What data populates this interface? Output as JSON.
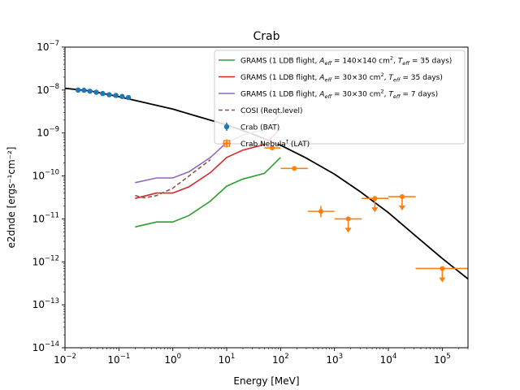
{
  "chart_data": {
    "type": "line",
    "title": "Crab",
    "xlabel": "Energy [MeV]",
    "ylabel": "e2dnde [ergs⁻¹cm⁻²]",
    "xscale": "log",
    "yscale": "log",
    "xlim": [
      0.01,
      300000
    ],
    "ylim": [
      1e-14,
      1e-07
    ],
    "x_ticks": [
      {
        "v": 0.01,
        "m": "10",
        "e": "−2"
      },
      {
        "v": 0.1,
        "m": "10",
        "e": "−1"
      },
      {
        "v": 1,
        "m": "10",
        "e": "0"
      },
      {
        "v": 10,
        "m": "10",
        "e": "1"
      },
      {
        "v": 100,
        "m": "10",
        "e": "2"
      },
      {
        "v": 1000,
        "m": "10",
        "e": "3"
      },
      {
        "v": 10000,
        "m": "10",
        "e": "4"
      },
      {
        "v": 100000,
        "m": "10",
        "e": "5"
      }
    ],
    "y_ticks": [
      {
        "v": 1e-14,
        "m": "10",
        "e": "−14"
      },
      {
        "v": 1e-13,
        "m": "10",
        "e": "−13"
      },
      {
        "v": 1e-12,
        "m": "10",
        "e": "−12"
      },
      {
        "v": 1e-11,
        "m": "10",
        "e": "−11"
      },
      {
        "v": 1e-10,
        "m": "10",
        "e": "−10"
      },
      {
        "v": 1e-09,
        "m": "10",
        "e": "−9"
      },
      {
        "v": 1e-08,
        "m": "10",
        "e": "−8"
      },
      {
        "v": 1e-07,
        "m": "10",
        "e": "−7"
      }
    ],
    "legend_position": "top-right",
    "model_curve": {
      "color": "#000000",
      "x": [
        0.01,
        0.03,
        0.1,
        0.3,
        1,
        3,
        10,
        30,
        100,
        300,
        1000,
        3000,
        10000,
        30000,
        100000,
        300000
      ],
      "y": [
        1.1e-08,
        9.5e-09,
        7e-09,
        5.1e-09,
        3.6e-09,
        2.4e-09,
        1.55e-09,
        9.5e-10,
        5.2e-10,
        2.6e-10,
        1.1e-10,
        4.3e-11,
        1.4e-11,
        4.3e-12,
        1.2e-12,
        4e-13
      ]
    },
    "series": [
      {
        "name_parts": [
          "GRAMS (1 LDB flight, ",
          "A",
          "eff",
          " = 140×140 cm",
          "2",
          ", ",
          "T",
          "eff",
          " = 35 days)"
        ],
        "style": "solid",
        "color": "#2ca02c",
        "x": [
          0.2,
          0.5,
          1,
          2,
          5,
          10,
          20,
          50,
          100
        ],
        "y": [
          6.5e-12,
          8.5e-12,
          8.5e-12,
          1.2e-11,
          2.6e-11,
          5.8e-11,
          8.5e-11,
          1.15e-10,
          2.7e-10
        ]
      },
      {
        "name_parts": [
          "GRAMS (1 LDB flight, ",
          "A",
          "eff",
          " = 30×30 cm",
          "2",
          ", ",
          "T",
          "eff",
          " = 35 days)"
        ],
        "style": "solid",
        "color": "#d62728",
        "x": [
          0.2,
          0.5,
          1,
          2,
          5,
          10,
          20,
          50,
          100
        ],
        "y": [
          3e-11,
          4e-11,
          4e-11,
          5.6e-11,
          1.2e-10,
          2.7e-10,
          4e-10,
          5.4e-10,
          1.25e-09
        ]
      },
      {
        "name_parts": [
          "GRAMS (1 LDB flight, ",
          "A",
          "eff",
          " = 30×30 cm",
          "2",
          ", ",
          "T",
          "eff",
          " = 7 days)"
        ],
        "style": "solid",
        "color": "#9467bd",
        "x": [
          0.2,
          0.5,
          1,
          2,
          5,
          10,
          20,
          50,
          100
        ],
        "y": [
          7e-11,
          9e-11,
          9e-11,
          1.25e-10,
          2.7e-10,
          6e-10,
          9e-10,
          1.2e-09,
          2.8e-09
        ]
      },
      {
        "name_parts": [
          "COSI (Reqt.level)"
        ],
        "style": "dashed",
        "color": "#8c564b",
        "x": [
          0.2,
          0.3,
          0.5,
          1,
          2,
          5
        ],
        "y": [
          3.5e-11,
          3.1e-11,
          3.5e-11,
          5.2e-11,
          1e-10,
          2.4e-10
        ]
      },
      {
        "name_parts": [
          "Crab (BAT)"
        ],
        "style": "points",
        "color": "#1f77b4",
        "x": [
          0.0175,
          0.0225,
          0.029,
          0.038,
          0.05,
          0.066,
          0.088,
          0.115,
          0.15
        ],
        "y": [
          1e-08,
          9.9e-09,
          9.4e-09,
          8.9e-09,
          8.3e-09,
          7.8e-09,
          7.5e-09,
          7.1e-09,
          6.7e-09
        ]
      },
      {
        "name_parts": [
          "Crab Nebula",
          "†",
          " (LAT)"
        ],
        "style": "errorbars",
        "color": "#ff7f0e",
        "points": [
          {
            "x": 70,
            "y": 4.5e-10,
            "xlo": 50,
            "xhi": 100,
            "ylo": 4e-10,
            "yhi": 5e-10,
            "ul": false
          },
          {
            "x": 180,
            "y": 1.5e-10,
            "xlo": 100,
            "xhi": 320,
            "ylo": 1.4e-10,
            "yhi": 1.6e-10,
            "ul": false
          },
          {
            "x": 560,
            "y": 1.5e-11,
            "xlo": 320,
            "xhi": 1000,
            "ylo": 1.1e-11,
            "yhi": 2e-11,
            "ul": false
          },
          {
            "x": 1800,
            "y": 1e-11,
            "xlo": 1000,
            "xhi": 3200,
            "ul": true
          },
          {
            "x": 5600,
            "y": 3e-11,
            "xlo": 3200,
            "xhi": 10000,
            "ul": true
          },
          {
            "x": 18000,
            "y": 3.3e-11,
            "xlo": 10000,
            "xhi": 32000,
            "ul": true
          },
          {
            "x": 100000,
            "y": 7e-13,
            "xlo": 32000,
            "xhi": 320000,
            "ul": true
          }
        ]
      }
    ]
  }
}
